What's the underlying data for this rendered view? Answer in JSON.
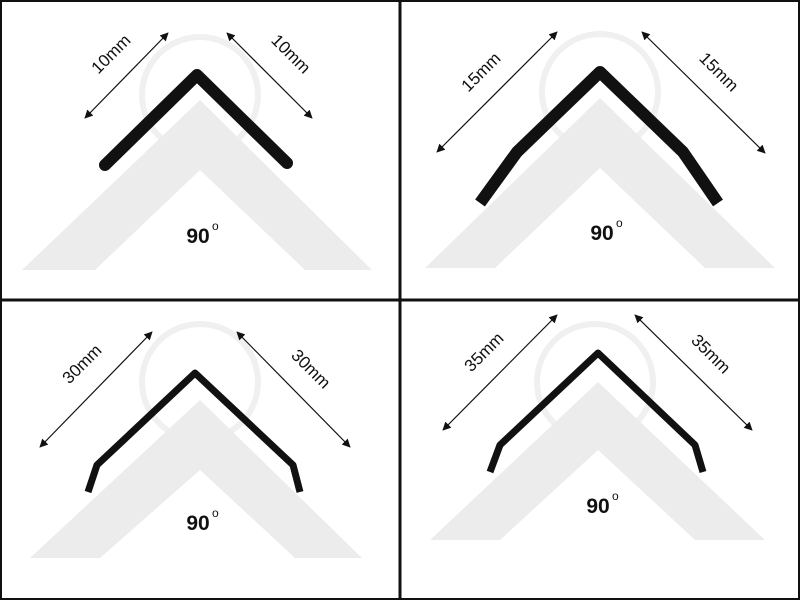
{
  "panels": [
    {
      "left_label": "10mm",
      "right_label": "10mm",
      "angle": "90",
      "angle_mark": "o"
    },
    {
      "left_label": "15mm",
      "right_label": "15mm",
      "angle": "90",
      "angle_mark": "o"
    },
    {
      "left_label": "30mm",
      "right_label": "30mm",
      "angle": "90",
      "angle_mark": "o"
    },
    {
      "left_label": "35mm",
      "right_label": "35mm",
      "angle": "90",
      "angle_mark": "o"
    }
  ]
}
